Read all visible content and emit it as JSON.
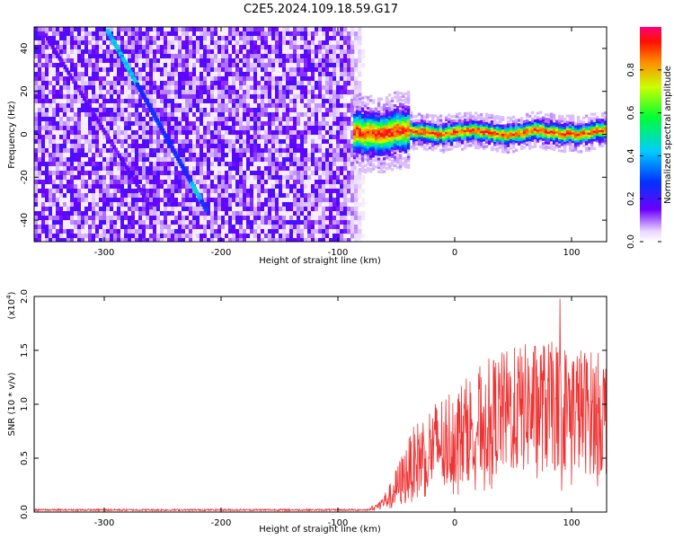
{
  "title": "C2E5.2024.109.18.59.G17",
  "colors": {
    "snr_line": "#ee3333",
    "spectrogram_hue_low": "#5a00e6",
    "axis": "#000000"
  },
  "chart_data": [
    {
      "id": "spectrogram",
      "type": "heatmap",
      "xlabel": "Height of straight line (km)",
      "ylabel": "Frequency (Hz)",
      "xlim": [
        -360,
        130
      ],
      "ylim": [
        -50,
        50
      ],
      "xticks": [
        -300,
        -200,
        -100,
        0,
        100
      ],
      "yticks": [
        -40,
        -20,
        0,
        20,
        40
      ],
      "colorbar": {
        "label": "Normalized spectral amplitude",
        "range": [
          0,
          1
        ],
        "ticks": [
          0.0,
          0.2,
          0.4,
          0.6,
          0.8
        ],
        "tick_labels": [
          "0.0",
          "0.2",
          "0.4",
          "0.6",
          "0.8"
        ]
      },
      "features": {
        "noise_region_x": [
          -360,
          -83
        ],
        "direct_signal_band": {
          "x": [
            -87,
            130
          ],
          "center_hz": 1,
          "width_hz": 4,
          "peak_amplitude": 0.9
        },
        "diagonal_trace": {
          "start": [
            -297,
            48
          ],
          "end": [
            -213,
            -35
          ],
          "amplitude": 0.45
        }
      }
    },
    {
      "id": "snr",
      "type": "line",
      "xlabel": "Height of straight line (km)",
      "ylabel": "SNR (10 * v/v)",
      "yscale_label": "(x10",
      "yscale_exponent": "4",
      "yscale_close": ")",
      "xlim": [
        -360,
        130
      ],
      "ylim": [
        0,
        2.0
      ],
      "xticks": [
        -300,
        -200,
        -100,
        0,
        100
      ],
      "yticks": [
        0.0,
        0.5,
        1.0,
        1.5,
        2.0
      ],
      "ytick_labels": [
        "0.0",
        "0.5",
        "1.0",
        "1.5",
        "2.0"
      ],
      "series": [
        {
          "name": "SNR",
          "envelope_x": [
            -360,
            -75,
            -65,
            -55,
            -45,
            -35,
            -25,
            -15,
            -5,
            5,
            15,
            25,
            35,
            45,
            55,
            65,
            75,
            85,
            95,
            105,
            115,
            130
          ],
          "envelope_y": [
            0.02,
            0.02,
            0.06,
            0.15,
            0.3,
            0.45,
            0.55,
            0.62,
            0.68,
            0.74,
            0.8,
            0.86,
            0.9,
            0.93,
            0.95,
            0.97,
            0.98,
            0.97,
            0.96,
            0.95,
            0.93,
            0.9
          ],
          "noise_fraction_y": [
            0.3,
            0.3,
            0.5,
            0.6,
            0.6,
            0.55,
            0.55,
            0.5,
            0.5,
            0.45,
            0.45,
            0.45,
            0.45,
            0.45,
            0.45,
            0.45,
            0.45,
            0.45,
            0.45,
            0.45,
            0.45,
            0.45
          ],
          "peak_value": 1.98,
          "peak_x": 90
        }
      ]
    }
  ]
}
